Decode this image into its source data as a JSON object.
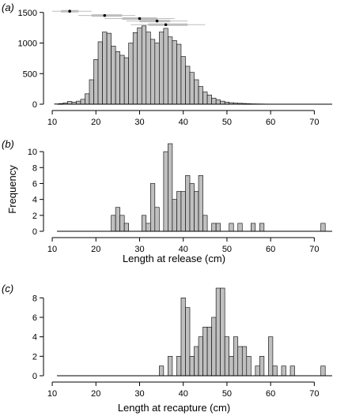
{
  "chart_data": [
    {
      "type": "bar",
      "panel": "(a)",
      "binwidth": 1,
      "x": [
        11,
        12,
        13,
        14,
        15,
        16,
        17,
        18,
        19,
        20,
        21,
        22,
        23,
        24,
        25,
        26,
        27,
        28,
        29,
        30,
        31,
        32,
        33,
        34,
        35,
        36,
        37,
        38,
        39,
        40,
        41,
        42,
        43,
        44,
        45,
        46,
        47,
        48,
        49,
        50,
        51,
        52,
        53,
        54,
        55,
        56,
        57,
        58,
        59,
        60,
        61,
        62,
        63,
        64,
        65,
        66,
        67,
        68,
        69,
        70,
        71,
        72,
        73
      ],
      "values": [
        5,
        10,
        22,
        45,
        35,
        50,
        80,
        170,
        400,
        730,
        1020,
        1180,
        1160,
        950,
        860,
        800,
        760,
        1000,
        1170,
        1250,
        1280,
        1180,
        1060,
        1000,
        1180,
        1240,
        1100,
        1040,
        980,
        780,
        620,
        520,
        400,
        290,
        200,
        150,
        100,
        70,
        50,
        35,
        25,
        18,
        15,
        12,
        8,
        6,
        5,
        4,
        3,
        2,
        2,
        1,
        1,
        1,
        1,
        0,
        0,
        0,
        0,
        0,
        0,
        0,
        0
      ],
      "xlim": [
        8,
        75
      ],
      "ylim": [
        0,
        1600
      ],
      "xticks": [
        "10",
        "20",
        "30",
        "40",
        "50",
        "60",
        "70"
      ],
      "yticks": [
        "0",
        "500",
        "1000",
        "1500"
      ],
      "intervals": [
        {
          "center": 14,
          "outer": [
            10,
            19
          ],
          "inner": [
            12,
            16
          ],
          "y": 1520
        },
        {
          "center": 22,
          "outer": [
            16,
            29
          ],
          "inner": [
            19,
            26
          ],
          "y": 1450
        },
        {
          "center": 30,
          "outer": [
            22,
            38
          ],
          "inner": [
            26,
            34
          ],
          "y": 1400
        },
        {
          "center": 34,
          "outer": [
            27,
            41
          ],
          "inner": [
            30,
            37
          ],
          "y": 1360
        },
        {
          "center": 36,
          "outer": [
            28,
            45
          ],
          "inner": [
            32,
            41
          ],
          "y": 1300
        }
      ]
    },
    {
      "type": "bar",
      "panel": "(b)",
      "binwidth": 1,
      "x": [
        24,
        25,
        26,
        27,
        28,
        29,
        30,
        31,
        32,
        33,
        34,
        35,
        36,
        37,
        38,
        39,
        40,
        41,
        42,
        43,
        44,
        45,
        46,
        47,
        48,
        49,
        50,
        51,
        52,
        53,
        54,
        55,
        56,
        57,
        58,
        59,
        60,
        61,
        62,
        63,
        64,
        65,
        66,
        67,
        68,
        69,
        70,
        71,
        72
      ],
      "values": [
        2,
        3,
        2,
        1,
        0,
        0,
        0,
        2,
        1,
        6,
        3,
        0,
        10,
        11,
        4,
        5,
        5,
        7,
        6,
        5,
        7,
        2,
        0,
        1,
        1,
        0,
        0,
        1,
        0,
        1,
        0,
        0,
        1,
        0,
        1,
        0,
        0,
        0,
        0,
        0,
        0,
        0,
        0,
        0,
        0,
        0,
        0,
        0,
        1
      ],
      "xlim": [
        8,
        75
      ],
      "ylim": [
        0,
        11
      ],
      "xticks": [
        "10",
        "20",
        "30",
        "40",
        "50",
        "60",
        "70"
      ],
      "yticks": [
        "0",
        "2",
        "4",
        "6",
        "8",
        "10"
      ],
      "xlabel": "Length at release (cm)",
      "ylabel": "Frequency"
    },
    {
      "type": "bar",
      "panel": "(c)",
      "binwidth": 1,
      "x": [
        35,
        36,
        37,
        38,
        39,
        40,
        41,
        42,
        43,
        44,
        45,
        46,
        47,
        48,
        49,
        50,
        51,
        52,
        53,
        54,
        55,
        56,
        57,
        58,
        59,
        60,
        61,
        62,
        63,
        64,
        65,
        66,
        67,
        68,
        69,
        70,
        71,
        72
      ],
      "values": [
        1,
        0,
        2,
        0,
        2,
        8,
        7,
        2,
        3,
        4,
        5,
        5,
        6,
        9,
        9,
        4,
        2,
        4,
        3,
        3,
        2,
        0,
        1,
        2,
        0,
        4,
        1,
        0,
        1,
        0,
        1,
        0,
        0,
        0,
        0,
        0,
        0,
        1
      ],
      "xlim": [
        8,
        75
      ],
      "ylim": [
        0,
        9
      ],
      "xticks": [
        "10",
        "20",
        "30",
        "40",
        "50",
        "60",
        "70"
      ],
      "yticks": [
        "0",
        "2",
        "4",
        "6",
        "8"
      ],
      "xlabel": "Length at recapture (cm)"
    }
  ]
}
